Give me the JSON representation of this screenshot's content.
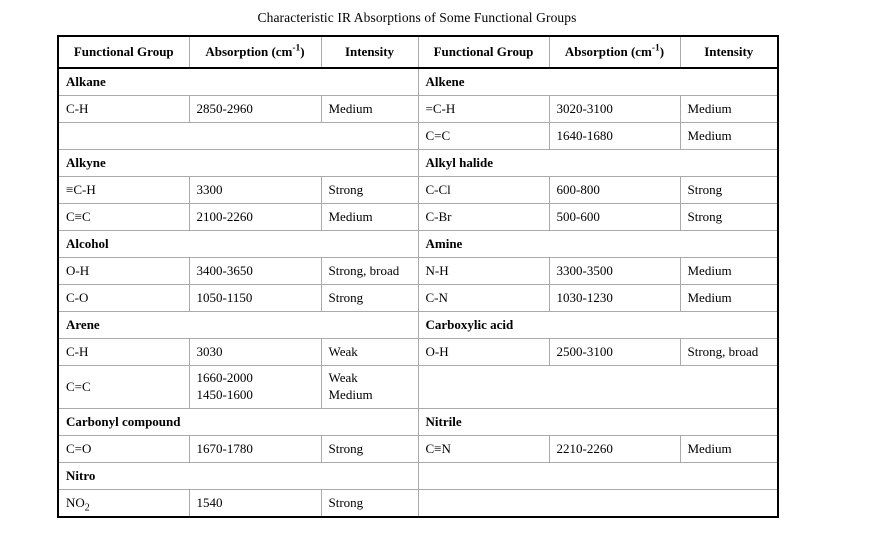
{
  "title": "Characteristic IR Absorptions of Some Functional Groups",
  "table": {
    "column_headers": [
      "Functional Group",
      "Absorption (cm-1)",
      "Intensity",
      "Functional Group",
      "Absorption (cm-1)",
      "Intensity"
    ],
    "rows": [
      {
        "header": true,
        "cells": [
          {
            "parts": [
              {
                "t": "Functional Group"
              }
            ]
          },
          {
            "parts": [
              {
                "t": "Absorption (cm"
              },
              {
                "t": "-1",
                "sup": true
              },
              {
                "t": ")"
              }
            ]
          },
          {
            "parts": [
              {
                "t": "Intensity"
              }
            ]
          },
          {
            "parts": [
              {
                "t": "Functional Group"
              }
            ]
          },
          {
            "parts": [
              {
                "t": "Absorption (cm"
              },
              {
                "t": "-1",
                "sup": true
              },
              {
                "t": ")"
              }
            ]
          },
          {
            "parts": [
              {
                "t": "Intensity"
              }
            ]
          }
        ]
      },
      {
        "cells": [
          {
            "text": "Alkane",
            "colspan": 3,
            "bold": true
          },
          {
            "text": "Alkene",
            "colspan": 3,
            "bold": true
          }
        ]
      },
      {
        "cells": [
          {
            "text": "C-H"
          },
          {
            "text": "2850-2960"
          },
          {
            "text": "Medium"
          },
          {
            "text": "=C-H"
          },
          {
            "text": "3020-3100"
          },
          {
            "text": "Medium"
          }
        ]
      },
      {
        "cells": [
          {
            "text": "",
            "colspan": 3
          },
          {
            "text": "C=C"
          },
          {
            "text": "1640-1680"
          },
          {
            "text": "Medium"
          }
        ]
      },
      {
        "cells": [
          {
            "text": "Alkyne",
            "colspan": 3,
            "bold": true
          },
          {
            "text": "Alkyl halide",
            "colspan": 3,
            "bold": true
          }
        ]
      },
      {
        "cells": [
          {
            "text": "≡C-H"
          },
          {
            "text": "3300"
          },
          {
            "text": "Strong"
          },
          {
            "text": "C-Cl"
          },
          {
            "text": "600-800"
          },
          {
            "text": "Strong"
          }
        ]
      },
      {
        "cells": [
          {
            "text": "C≡C"
          },
          {
            "text": "2100-2260"
          },
          {
            "text": "Medium"
          },
          {
            "text": "C-Br"
          },
          {
            "text": "500-600"
          },
          {
            "text": "Strong"
          }
        ]
      },
      {
        "cells": [
          {
            "text": "Alcohol",
            "colspan": 3,
            "bold": true
          },
          {
            "text": "Amine",
            "colspan": 3,
            "bold": true
          }
        ]
      },
      {
        "cells": [
          {
            "text": "O-H"
          },
          {
            "text": "3400-3650"
          },
          {
            "text": "Strong, broad"
          },
          {
            "text": "N-H"
          },
          {
            "text": "3300-3500"
          },
          {
            "text": "Medium"
          }
        ]
      },
      {
        "cells": [
          {
            "text": "C-O"
          },
          {
            "text": "1050-1150"
          },
          {
            "text": "Strong"
          },
          {
            "text": "C-N"
          },
          {
            "text": "1030-1230"
          },
          {
            "text": "Medium"
          }
        ]
      },
      {
        "cells": [
          {
            "text": "Arene",
            "colspan": 3,
            "bold": true
          },
          {
            "text": "Carboxylic acid",
            "colspan": 3,
            "bold": true
          }
        ]
      },
      {
        "cells": [
          {
            "text": "C-H"
          },
          {
            "text": "3030"
          },
          {
            "text": "Weak"
          },
          {
            "text": "O-H"
          },
          {
            "text": "2500-3100"
          },
          {
            "text": "Strong, broad"
          }
        ]
      },
      {
        "cells": [
          {
            "text": "C=C"
          },
          {
            "lines": [
              "1660-2000",
              "1450-1600"
            ]
          },
          {
            "lines": [
              "Weak",
              "Medium"
            ]
          },
          {
            "text": "",
            "colspan": 3
          }
        ]
      },
      {
        "cells": [
          {
            "text": "Carbonyl compound",
            "colspan": 3,
            "bold": true
          },
          {
            "text": "Nitrile",
            "colspan": 3,
            "bold": true
          }
        ]
      },
      {
        "cells": [
          {
            "text": "C=O"
          },
          {
            "text": "1670-1780"
          },
          {
            "text": "Strong"
          },
          {
            "text": "C≡N"
          },
          {
            "text": "2210-2260"
          },
          {
            "text": "Medium"
          }
        ]
      },
      {
        "cells": [
          {
            "text": "Nitro",
            "colspan": 3,
            "bold": true
          },
          {
            "text": "",
            "colspan": 3
          }
        ]
      },
      {
        "cells": [
          {
            "parts": [
              {
                "t": "NO"
              },
              {
                "t": "2",
                "sub": true
              }
            ]
          },
          {
            "text": "1540"
          },
          {
            "text": "Strong"
          },
          {
            "text": "",
            "colspan": 3
          }
        ]
      }
    ]
  }
}
